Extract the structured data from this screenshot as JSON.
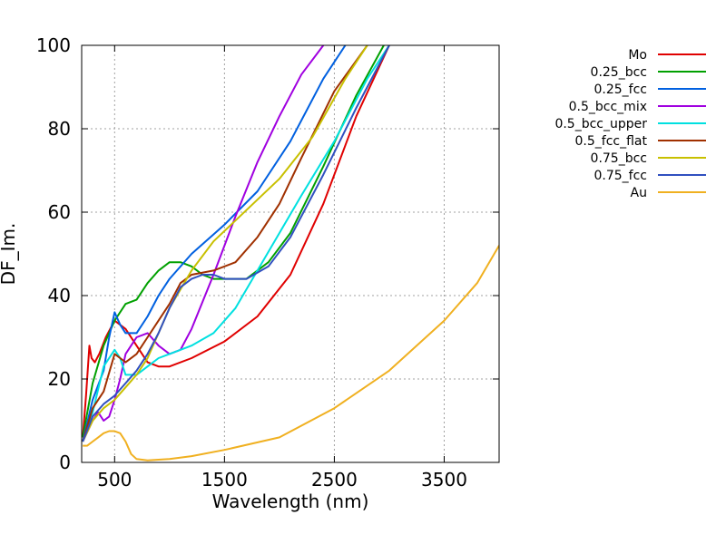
{
  "chart_data": {
    "type": "line",
    "xlabel": "Wavelength (nm)",
    "ylabel": "DF_Im.",
    "xlim": [
      200,
      4000
    ],
    "ylim": [
      0,
      100
    ],
    "xticks": [
      500,
      1500,
      2500,
      3500
    ],
    "yticks": [
      0,
      20,
      40,
      60,
      80,
      100
    ],
    "grid": true,
    "legend_position": "top-right-outside",
    "series": [
      {
        "name": "Mo",
        "color": "#e00000",
        "x": [
          210,
          240,
          270,
          290,
          320,
          360,
          420,
          500,
          600,
          700,
          800,
          900,
          1000,
          1200,
          1500,
          1800,
          2100,
          2400,
          2700,
          3000
        ],
        "y": [
          6,
          16,
          28,
          25,
          24,
          26,
          30,
          34,
          32,
          28,
          24,
          23,
          23,
          25,
          29,
          35,
          45,
          62,
          83,
          100
        ]
      },
      {
        "name": "0.25_bcc",
        "color": "#00a000",
        "x": [
          210,
          300,
          400,
          500,
          600,
          700,
          800,
          900,
          1000,
          1100,
          1200,
          1300,
          1400,
          1500,
          1700,
          1900,
          2100,
          2400,
          2700,
          2950
        ],
        "y": [
          6,
          19,
          28,
          34,
          38,
          39,
          43,
          46,
          48,
          48,
          47,
          45,
          44,
          44,
          44,
          48,
          55,
          71,
          88,
          100
        ]
      },
      {
        "name": "0.25_fcc",
        "color": "#0060e0",
        "x": [
          210,
          300,
          400,
          450,
          500,
          550,
          600,
          700,
          800,
          900,
          1000,
          1200,
          1500,
          1800,
          2100,
          2400,
          2600
        ],
        "y": [
          5,
          15,
          22,
          30,
          36,
          33,
          31,
          31,
          35,
          40,
          44,
          50,
          57,
          65,
          77,
          92,
          100
        ]
      },
      {
        "name": "0.5_bcc_mix",
        "color": "#a000e0",
        "x": [
          210,
          300,
          350,
          400,
          450,
          500,
          550,
          600,
          700,
          800,
          900,
          1000,
          1100,
          1200,
          1400,
          1600,
          1800,
          2000,
          2200,
          2400
        ],
        "y": [
          5,
          10,
          12,
          10,
          11,
          15,
          20,
          26,
          30,
          31,
          28,
          26,
          27,
          32,
          45,
          59,
          72,
          83,
          93,
          100
        ]
      },
      {
        "name": "0.5_bcc_upper",
        "color": "#00e0e0",
        "x": [
          210,
          300,
          400,
          500,
          550,
          600,
          700,
          800,
          900,
          1000,
          1200,
          1400,
          1600,
          1800,
          2000,
          2200,
          2500,
          2800,
          3000
        ],
        "y": [
          5,
          12,
          23,
          27,
          25,
          21,
          21,
          23,
          25,
          26,
          28,
          31,
          37,
          46,
          55,
          64,
          77,
          92,
          100
        ]
      },
      {
        "name": "0.5_fcc_flat",
        "color": "#a03000",
        "x": [
          210,
          300,
          400,
          500,
          550,
          600,
          700,
          800,
          900,
          1000,
          1100,
          1200,
          1400,
          1600,
          1800,
          2000,
          2200,
          2500,
          2800
        ],
        "y": [
          5,
          13,
          17,
          26,
          25,
          24,
          26,
          30,
          34,
          38,
          43,
          45,
          46,
          48,
          54,
          62,
          73,
          89,
          100
        ]
      },
      {
        "name": "0.75_bcc",
        "color": "#c8c000",
        "x": [
          210,
          300,
          400,
          500,
          600,
          700,
          800,
          900,
          1000,
          1200,
          1400,
          1600,
          1800,
          2000,
          2300,
          2600,
          2800
        ],
        "y": [
          5,
          10,
          13,
          15,
          18,
          21,
          25,
          31,
          37,
          46,
          53,
          58,
          63,
          68,
          78,
          92,
          100
        ]
      },
      {
        "name": "0.75_fcc",
        "color": "#3050c0",
        "x": [
          210,
          300,
          400,
          500,
          600,
          700,
          800,
          900,
          1000,
          1100,
          1200,
          1300,
          1400,
          1500,
          1600,
          1700,
          1900,
          2100,
          2400,
          2700,
          3000
        ],
        "y": [
          5,
          11,
          14,
          16,
          19,
          22,
          26,
          31,
          37,
          42,
          44,
          45,
          45,
          44,
          44,
          44,
          47,
          54,
          69,
          85,
          100
        ]
      },
      {
        "name": "Au",
        "color": "#f0b020",
        "x": [
          210,
          250,
          300,
          350,
          400,
          450,
          500,
          550,
          600,
          650,
          700,
          800,
          1000,
          1200,
          1500,
          2000,
          2500,
          3000,
          3500,
          3800,
          4000
        ],
        "y": [
          4,
          4,
          5,
          6,
          7,
          7.5,
          7.5,
          7,
          5,
          2,
          0.8,
          0.5,
          0.8,
          1.5,
          3,
          6,
          13,
          22,
          34,
          43,
          52
        ]
      }
    ]
  }
}
